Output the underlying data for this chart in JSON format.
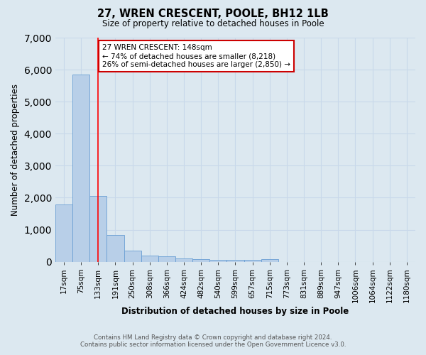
{
  "title": "27, WREN CRESCENT, POOLE, BH12 1LB",
  "subtitle": "Size of property relative to detached houses in Poole",
  "xlabel": "Distribution of detached houses by size in Poole",
  "ylabel": "Number of detached properties",
  "bin_labels": [
    "17sqm",
    "75sqm",
    "133sqm",
    "191sqm",
    "250sqm",
    "308sqm",
    "366sqm",
    "424sqm",
    "482sqm",
    "540sqm",
    "599sqm",
    "657sqm",
    "715sqm",
    "773sqm",
    "831sqm",
    "889sqm",
    "947sqm",
    "1006sqm",
    "1064sqm",
    "1122sqm",
    "1180sqm"
  ],
  "bar_heights": [
    1780,
    5850,
    2060,
    840,
    340,
    200,
    160,
    110,
    90,
    70,
    60,
    50,
    90,
    0,
    0,
    0,
    0,
    0,
    0,
    0,
    0
  ],
  "bar_color": "#b8cfe8",
  "bar_edge_color": "#6a9fd4",
  "grid_color": "#c8d8ea",
  "background_color": "#dce8f0",
  "red_line_x": 2,
  "annotation_title": "27 WREN CRESCENT: 148sqm",
  "annotation_line1": "← 74% of detached houses are smaller (8,218)",
  "annotation_line2": "26% of semi-detached houses are larger (2,850) →",
  "annotation_box_color": "#ffffff",
  "annotation_box_edge_color": "#cc0000",
  "footnote1": "Contains HM Land Registry data © Crown copyright and database right 2024.",
  "footnote2": "Contains public sector information licensed under the Open Government Licence v3.0.",
  "ylim": [
    0,
    7000
  ],
  "yticks": [
    0,
    1000,
    2000,
    3000,
    4000,
    5000,
    6000,
    7000
  ]
}
